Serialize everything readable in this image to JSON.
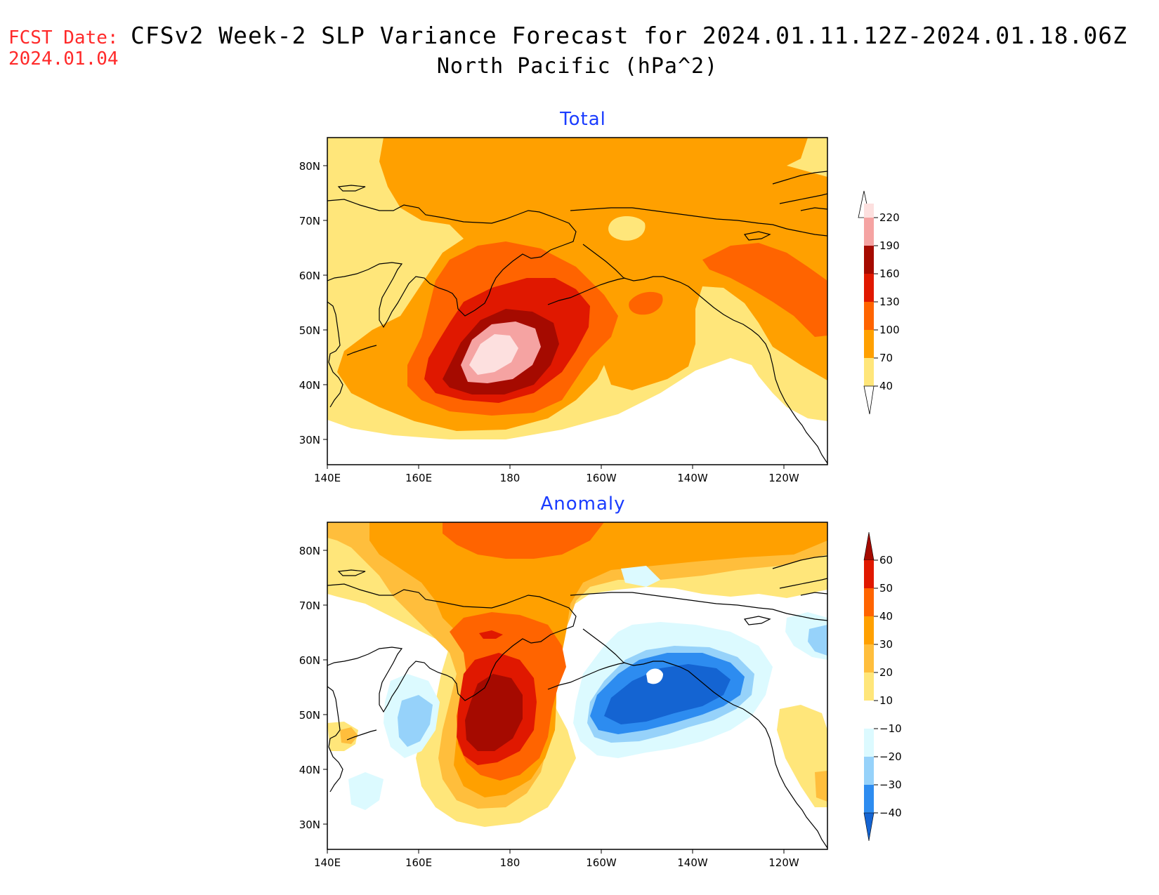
{
  "header": {
    "fcst_label": "FCST Date:",
    "fcst_date": "2024.01.04",
    "title": "CFSv2 Week-2 SLP Variance Forecast for 2024.01.11.12Z-2024.01.18.06Z",
    "subtitle": "North Pacific (hPa^2)"
  },
  "axes": {
    "lat_labels": [
      "80N",
      "70N",
      "60N",
      "50N",
      "40N",
      "30N"
    ],
    "lon_labels": [
      "140E",
      "160E",
      "180",
      "160W",
      "140W",
      "120W"
    ]
  },
  "panels": [
    {
      "title": "Total",
      "colorbar_levels": [
        "220",
        "190",
        "160",
        "130",
        "100",
        "70",
        "40"
      ],
      "colors": [
        "#fde0df",
        "#f5a3a2",
        "#a50a00",
        "#e01800",
        "#ff6400",
        "#ffa000",
        "#ffe67a"
      ]
    },
    {
      "title": "Anomaly",
      "colorbar_levels": [
        "60",
        "50",
        "40",
        "30",
        "20",
        "10",
        "−10",
        "−20",
        "−30",
        "−40"
      ],
      "colors": [
        "#a50a00",
        "#e01800",
        "#ff6400",
        "#ffa000",
        "#ffbe3c",
        "#ffe67a",
        "#ffffff",
        "#dcfaff",
        "#96d2fa",
        "#2d8cf0",
        "#1464d2"
      ]
    }
  ]
}
